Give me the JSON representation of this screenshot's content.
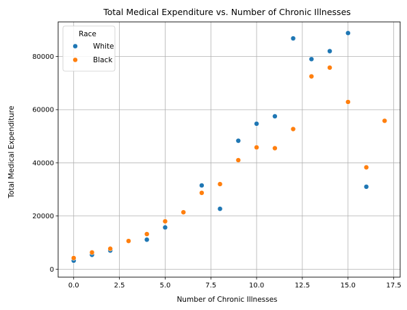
{
  "chart_data": {
    "type": "scatter",
    "title": "Total Medical Expenditure vs. Number of Chronic Illnesses",
    "xlabel": "Number of Chronic Illnesses",
    "ylabel": "Total Medical Expenditure",
    "xlim": [
      -0.85,
      17.85
    ],
    "ylim": [
      -3000,
      93000
    ],
    "xticks": [
      0,
      2.5,
      5,
      7.5,
      10,
      12.5,
      15,
      17.5
    ],
    "xtick_labels": [
      "0.0",
      "2.5",
      "5.0",
      "7.5",
      "10.0",
      "12.5",
      "15.0",
      "17.5"
    ],
    "yticks": [
      0,
      20000,
      40000,
      60000,
      80000
    ],
    "ytick_labels": [
      "0",
      "20000",
      "40000",
      "60000",
      "80000"
    ],
    "grid": true,
    "legend": {
      "title": "Race",
      "placement": "top-left"
    },
    "series": [
      {
        "name": "White",
        "color": "#1f77b4",
        "points": [
          [
            0,
            3200
          ],
          [
            1,
            5400
          ],
          [
            2,
            7000
          ],
          [
            4,
            11100
          ],
          [
            5,
            15700
          ],
          [
            7,
            31500
          ],
          [
            8,
            22700
          ],
          [
            9,
            48300
          ],
          [
            10,
            54700
          ],
          [
            11,
            57500
          ],
          [
            12,
            86800
          ],
          [
            13,
            79000
          ],
          [
            14,
            82000
          ],
          [
            15,
            88800
          ],
          [
            16,
            31000
          ]
        ]
      },
      {
        "name": "Black",
        "color": "#ff7f0e",
        "points": [
          [
            0,
            4200
          ],
          [
            1,
            6300
          ],
          [
            2,
            7700
          ],
          [
            3,
            10600
          ],
          [
            4,
            13200
          ],
          [
            5,
            18000
          ],
          [
            6,
            21400
          ],
          [
            7,
            28700
          ],
          [
            8,
            32000
          ],
          [
            9,
            41000
          ],
          [
            10,
            45800
          ],
          [
            11,
            45500
          ],
          [
            12,
            52700
          ],
          [
            13,
            72500
          ],
          [
            14,
            75800
          ],
          [
            15,
            62900
          ],
          [
            16,
            38300
          ],
          [
            17,
            55800
          ]
        ]
      }
    ]
  }
}
